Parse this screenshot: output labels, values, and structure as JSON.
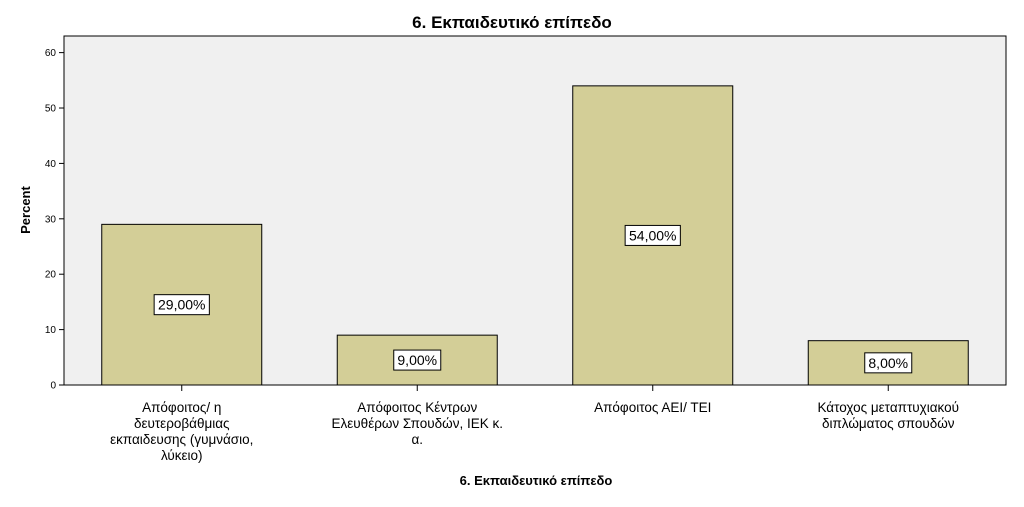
{
  "chart_data": {
    "type": "bar",
    "title": "6. Εκπαιδευτικό επίπεδο",
    "xlabel": "6. Εκπαιδευτικό επίπεδο",
    "ylabel": "Percent",
    "ylim": [
      0,
      63
    ],
    "yticks": [
      "0",
      "10",
      "20",
      "30",
      "40",
      "50",
      "60"
    ],
    "ytick_values": [
      0,
      10,
      20,
      30,
      40,
      50,
      60
    ],
    "grid": false,
    "categories": [
      [
        "Απόφοιτος/ η",
        "δευτεροβάθμιας",
        "εκπαιδευσης (γυμνάσιο,",
        "λύκειο)"
      ],
      [
        "Απόφοιτος Κέντρων",
        "Ελευθέρων Σπουδών, ΙΕΚ κ.",
        "α."
      ],
      [
        "Απόφοιτος ΑΕΙ/ ΤΕΙ"
      ],
      [
        "Κάτοχος μεταπτυχιακού",
        "διπλώματος σπουδών"
      ]
    ],
    "values": [
      29,
      9,
      54,
      8
    ],
    "data_labels": [
      "29,00%",
      "9,00%",
      "54,00%",
      "8,00%"
    ]
  },
  "colors": {
    "plot_background": "#f0f0f0",
    "bar_fill": "#d3ce97",
    "bar_stroke": "#000000",
    "axis": "#000000",
    "text": "#000000"
  }
}
